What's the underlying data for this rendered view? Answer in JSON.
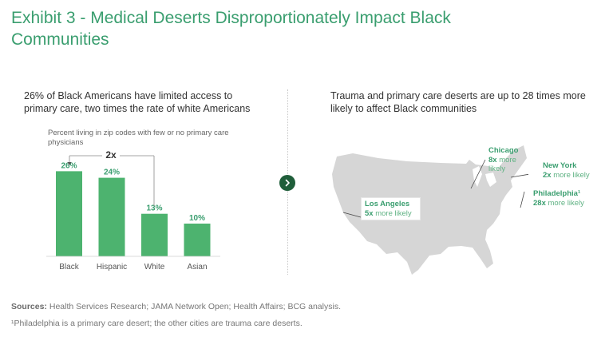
{
  "title": "Exhibit 3 - Medical Deserts Disproportionately Impact Black Communities",
  "left_panel": {
    "heading": "26% of Black Americans have limited access to primary care, two times the rate of white Americans"
  },
  "right_panel": {
    "heading": "Trauma and primary care deserts are up to 28 times more likely to affect Black communities"
  },
  "chart_data": {
    "type": "bar",
    "subtitle": "Percent living in zip codes with few or no primary care physicians",
    "categories": [
      "Black",
      "Hispanic",
      "White",
      "Asian"
    ],
    "values": [
      26,
      24,
      13,
      10
    ],
    "data_labels": [
      "26%",
      "24%",
      "13%",
      "10%"
    ],
    "ylim": [
      0,
      30
    ],
    "annotation": "2x",
    "color": "#4db36f"
  },
  "map": {
    "callouts": [
      {
        "city": "Chicago",
        "value": "8x",
        "desc_1": "more",
        "desc_2": "likely"
      },
      {
        "city": "New York",
        "value": "2x",
        "desc": "more likely"
      },
      {
        "city": "Philadelphia¹",
        "value": "28x",
        "desc": "more likely"
      },
      {
        "city": "Los Angeles",
        "value": "5x",
        "desc": "more likely"
      }
    ]
  },
  "footer": {
    "sources_label": "Sources:",
    "sources_text": "Health Services Research; JAMA Network Open; Health Affairs; BCG analysis.",
    "note": "¹Philadelphia is a primary care desert; the other cities are trauma care deserts."
  },
  "colors": {
    "title": "#3a9e6f",
    "bar": "#4db36f",
    "map": "#d6d6d6",
    "button": "#1f5e3a"
  },
  "icons": {
    "next": "chevron-right-icon"
  }
}
